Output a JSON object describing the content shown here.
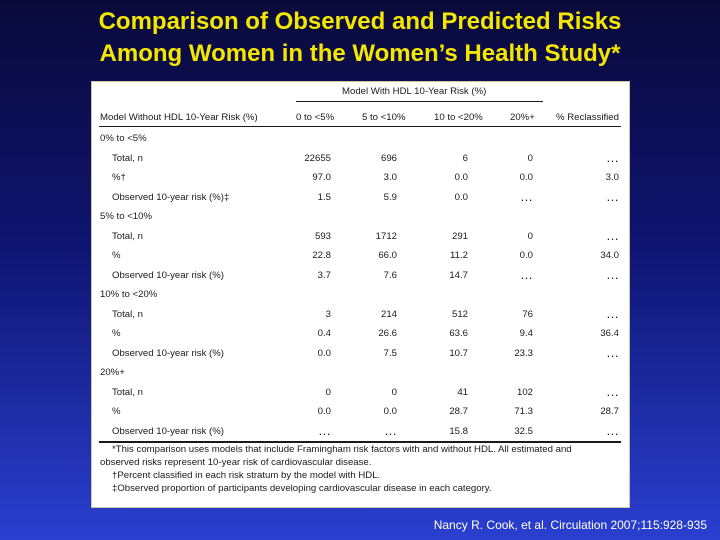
{
  "title": {
    "line1": "Comparison of Observed and Predicted Risks",
    "line2": "Among Women in the Women’s Health Study*"
  },
  "table": {
    "spanner": "Model With HDL 10-Year Risk (%)",
    "headers": [
      "Model Without HDL 10-Year Risk (%)",
      "0 to <5%",
      "5 to <10%",
      "10 to <20%",
      "20%+",
      "% Reclassified"
    ],
    "groups": [
      {
        "label": "0% to <5%",
        "rows": [
          {
            "label": "Total, n",
            "values": [
              "22655",
              "696",
              "6",
              "0",
              "…"
            ]
          },
          {
            "label": "%†",
            "values": [
              "97.0",
              "3.0",
              "0.0",
              "0.0",
              "3.0"
            ]
          },
          {
            "label": "Observed 10-year risk (%)‡",
            "values": [
              "1.5",
              "5.9",
              "0.0",
              "…",
              "…"
            ]
          }
        ]
      },
      {
        "label": "5% to <10%",
        "rows": [
          {
            "label": "Total, n",
            "values": [
              "593",
              "1712",
              "291",
              "0",
              "…"
            ]
          },
          {
            "label": "%",
            "values": [
              "22.8",
              "66.0",
              "11.2",
              "0.0",
              "34.0"
            ]
          },
          {
            "label": "Observed 10-year risk (%)",
            "values": [
              "3.7",
              "7.6",
              "14.7",
              "…",
              "…"
            ]
          }
        ]
      },
      {
        "label": "10% to <20%",
        "rows": [
          {
            "label": "Total, n",
            "values": [
              "3",
              "214",
              "512",
              "76",
              "…"
            ]
          },
          {
            "label": "%",
            "values": [
              "0.4",
              "26.6",
              "63.6",
              "9.4",
              "36.4"
            ]
          },
          {
            "label": "Observed 10-year risk (%)",
            "values": [
              "0.0",
              "7.5",
              "10.7",
              "23.3",
              "…"
            ]
          }
        ]
      },
      {
        "label": "20%+",
        "rows": [
          {
            "label": "Total, n",
            "values": [
              "0",
              "0",
              "41",
              "102",
              "…"
            ]
          },
          {
            "label": "%",
            "values": [
              "0.0",
              "0.0",
              "28.7",
              "71.3",
              "28.7"
            ]
          },
          {
            "label": "Observed 10-year risk (%)",
            "values": [
              "…",
              "…",
              "15.8",
              "32.5",
              "…"
            ]
          }
        ]
      }
    ],
    "footnotes": [
      "*This comparison uses models that include Framingham risk factors with and without HDL. All estimated and",
      "observed risks represent 10-year risk of cardiovascular disease.",
      "†Percent classified in each risk stratum by the model with HDL.",
      "‡Observed proportion of participants developing cardiovascular disease in each category."
    ]
  },
  "citation": "Nancy R. Cook, et al. Circulation 2007;115:928-935"
}
